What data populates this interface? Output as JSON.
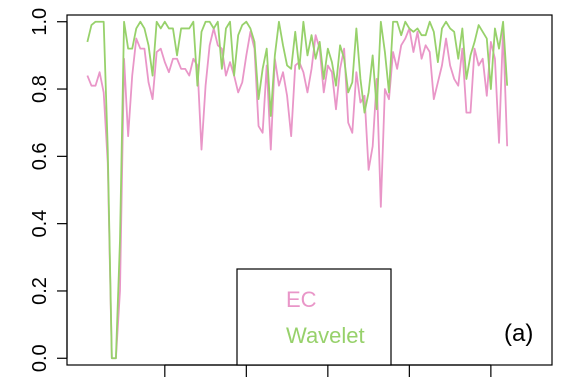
{
  "chart_data": {
    "type": "line",
    "title": "",
    "xlabel": "",
    "ylabel": "",
    "xlim": [
      -4,
      115
    ],
    "ylim": [
      -0.02,
      1.02
    ],
    "x_ticks": [
      20,
      40,
      60,
      80,
      100
    ],
    "y_ticks": [
      0.0,
      0.2,
      0.4,
      0.6,
      0.8,
      1.0
    ],
    "y_tick_labels": [
      "0.0",
      "0.2",
      "0.4",
      "0.6",
      "0.8",
      "1.0"
    ],
    "grid": false,
    "legend_position": "bottom-center",
    "panel_label": "(a)",
    "series": [
      {
        "name": "EC",
        "color": "#e996c8",
        "values": [
          0.84,
          0.81,
          0.81,
          0.85,
          0.79,
          0.58,
          0.0,
          0.0,
          0.2,
          0.89,
          0.66,
          0.84,
          0.95,
          0.92,
          0.92,
          0.82,
          0.77,
          0.91,
          0.92,
          0.88,
          0.85,
          0.89,
          0.89,
          0.86,
          0.86,
          0.84,
          0.89,
          0.87,
          0.62,
          0.81,
          0.93,
          0.98,
          0.93,
          0.92,
          0.84,
          0.88,
          0.84,
          0.79,
          0.82,
          0.9,
          0.97,
          0.92,
          0.69,
          0.67,
          0.87,
          0.62,
          0.89,
          0.81,
          0.85,
          0.78,
          0.66,
          0.87,
          0.88,
          0.85,
          0.79,
          0.86,
          0.96,
          0.92,
          0.79,
          0.87,
          0.85,
          0.74,
          0.86,
          0.92,
          0.7,
          0.67,
          0.85,
          0.76,
          0.78,
          0.56,
          0.63,
          0.83,
          0.45,
          0.8,
          0.77,
          0.91,
          0.86,
          0.93,
          0.95,
          0.98,
          0.91,
          0.97,
          0.89,
          0.93,
          0.91,
          0.77,
          0.82,
          0.87,
          0.95,
          0.87,
          0.83,
          0.81,
          0.92,
          0.73,
          0.73,
          0.92,
          0.87,
          0.89,
          0.78,
          0.94,
          0.89,
          0.64,
          0.98,
          0.63
        ],
        "x_start": 1
      },
      {
        "name": "Wavelet",
        "color": "#97d16b",
        "values": [
          0.94,
          0.99,
          1.0,
          1.0,
          1.0,
          0.62,
          0.0,
          0.0,
          0.35,
          1.0,
          0.92,
          0.92,
          0.98,
          1.0,
          0.98,
          0.93,
          0.84,
          1.0,
          0.98,
          1.0,
          0.98,
          0.98,
          0.9,
          0.98,
          0.98,
          0.98,
          1.0,
          0.81,
          0.97,
          1.0,
          1.0,
          0.98,
          1.0,
          0.86,
          0.98,
          1.0,
          0.84,
          0.96,
          0.99,
          1.0,
          0.98,
          0.94,
          0.77,
          0.86,
          0.92,
          0.72,
          0.9,
          1.0,
          0.93,
          0.87,
          0.86,
          0.97,
          0.86,
          1.0,
          0.9,
          0.96,
          0.89,
          0.94,
          0.83,
          0.92,
          0.88,
          0.81,
          0.93,
          0.89,
          0.79,
          0.82,
          0.98,
          0.83,
          0.73,
          0.79,
          0.9,
          0.74,
          1.0,
          0.91,
          0.79,
          1.0,
          1.0,
          0.96,
          1.0,
          0.98,
          0.97,
          0.98,
          0.96,
          0.96,
          1.0,
          0.97,
          0.88,
          0.98,
          1.0,
          0.98,
          0.97,
          0.89,
          0.98,
          0.83,
          0.9,
          0.94,
          0.99,
          0.97,
          0.95,
          0.8,
          0.98,
          0.92,
          1.0,
          0.81
        ],
        "x_start": 1
      }
    ]
  }
}
